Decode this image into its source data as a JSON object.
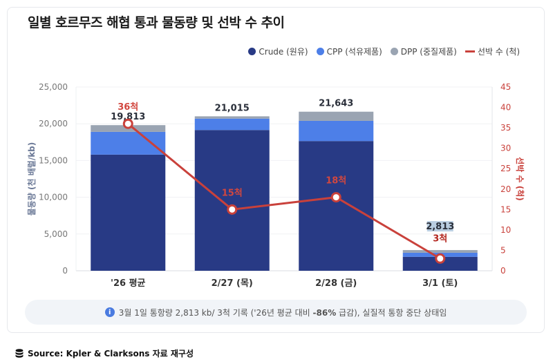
{
  "title": "일별 호르무즈 해협 통과 물동량 및 선박 수 추이",
  "legend": [
    {
      "label": "Crude (원유)",
      "color": "#283a85"
    },
    {
      "label": "CPP (석유제품)",
      "color": "#4d7fe8"
    },
    {
      "label": "DPP (중질제품)",
      "color": "#9aa4b2"
    },
    {
      "label": "선박 수 (척)",
      "color": "#c9413b"
    }
  ],
  "note": {
    "icon": "info-icon",
    "text_pre": "3월 1일 통항량 2,813 kb/ 3척 기록 ('26년 평균 대비 ",
    "text_bold": "-86%",
    "text_post": " 급감), 실질적 통항 중단 상태임"
  },
  "source": {
    "icon": "database-icon",
    "text": "Source: Kpler & Clarksons 자료 재구성"
  },
  "chart_data": {
    "type": "bar",
    "stacked": true,
    "categories": [
      "'26 평균",
      "2/27 (목)",
      "2/28 (금)",
      "3/1 (토)"
    ],
    "series": [
      {
        "name": "Crude (원유)",
        "values": [
          15800,
          19150,
          17650,
          1900
        ]
      },
      {
        "name": "CPP (석유제품)",
        "values": [
          3100,
          1550,
          2750,
          550
        ]
      },
      {
        "name": "DPP (중질제품)",
        "values": [
          913,
          315,
          1243,
          363
        ]
      }
    ],
    "totals": [
      19813,
      21015,
      21643,
      2813
    ],
    "total_labels": [
      "19,813",
      "21,015",
      "21,643",
      "2,813"
    ],
    "line": {
      "name": "선박 수 (척)",
      "values": [
        36,
        15,
        18,
        3
      ],
      "labels": [
        "36척",
        "15척",
        "18척",
        "3척"
      ],
      "axis": "right"
    },
    "ylabel": "물동량 (천 배럴/kb)",
    "y2label": "선박 수 (척)",
    "ylim": [
      0,
      25000
    ],
    "y2lim": [
      0,
      45
    ],
    "yticks": [
      "0",
      "5,000",
      "10,000",
      "15,000",
      "20,000",
      "25,000"
    ],
    "y2ticks": [
      "0",
      "5",
      "10",
      "15",
      "20",
      "25",
      "30",
      "35",
      "40",
      "45"
    ],
    "grid": true,
    "legend_position": "top-right"
  }
}
